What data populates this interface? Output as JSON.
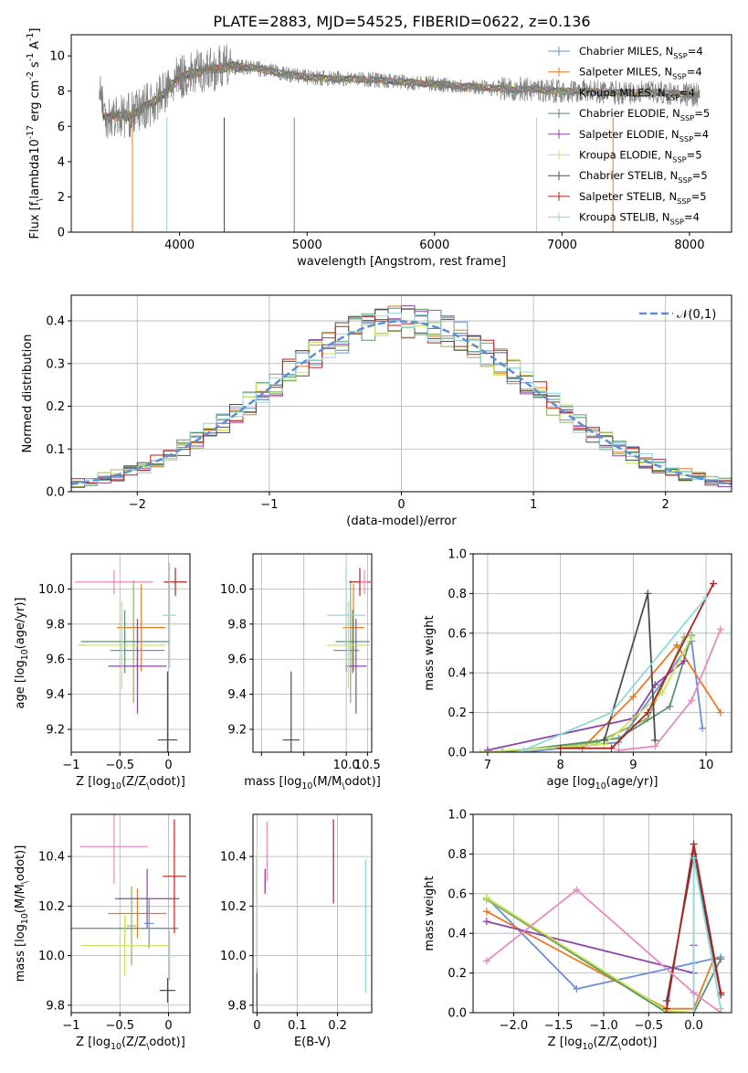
{
  "figure": {
    "title": "PLATE=2883, MJD=54525, FIBERID=0622, z=0.136"
  },
  "legend_spectrum": [
    "Chabrier MILES, N$_{SSP}$=4",
    "Salpeter MILES, N$_{SSP}$=4",
    "Kroupa MILES, N$_{SSP}$=4",
    "Chabrier ELODIE, N$_{SSP}$=5",
    "Salpeter ELODIE, N$_{SSP}$=4",
    "Kroupa ELODIE, N$_{SSP}$=5",
    "Chabrier STELIB, N$_{SSP}$=5",
    "Salpeter STELIB, N$_{SSP}$=5",
    "Kroupa STELIB, N$_{SSP}$=4"
  ],
  "colors": [
    "#6b8fd6",
    "#e87a27",
    "#8cb35a",
    "#5b8f70",
    "#8e44ad",
    "#c7e55a",
    "#4d4d4d",
    "#b22222",
    "#8dd8d8"
  ],
  "extra_color_pink": "#e88ac0",
  "chart_data": [
    {
      "id": "spectrum",
      "type": "line",
      "xlabel": "wavelength [Angstrom, rest frame]",
      "ylabel": "Flux [f$_\\lambda$10$^{-17}$ erg cm$^{-2}$ s$^{-1}$ A$^{-1}$]",
      "xlim": [
        3150,
        8330
      ],
      "ylim": [
        0,
        11.2
      ],
      "xticks": [
        4000,
        5000,
        6000,
        7000,
        8000
      ],
      "yticks": [
        0,
        2,
        4,
        6,
        8,
        10
      ],
      "grid": false,
      "legend_placement": "top-right",
      "data_continuum": {
        "x": [
          3400,
          3500,
          3600,
          3700,
          3800,
          3900,
          4000,
          4200,
          4400,
          4600,
          4800,
          5000,
          5200,
          5400,
          5600,
          5800,
          6000,
          6200,
          6400,
          6600,
          6800,
          7000,
          7200,
          7400,
          7600,
          7800,
          8000,
          8100
        ],
        "y": [
          6.6,
          6.6,
          6.6,
          7.0,
          7.4,
          8.0,
          8.8,
          9.2,
          9.4,
          9.3,
          9.0,
          8.8,
          8.7,
          8.7,
          8.6,
          8.5,
          8.4,
          8.3,
          8.2,
          8.1,
          8.1,
          8.0,
          8.0,
          7.9,
          7.9,
          7.9,
          7.8,
          7.8
        ]
      }
    },
    {
      "id": "residuals",
      "type": "histogram",
      "xlabel": "(data-model)/error",
      "ylabel": "Normed distribution",
      "xlim": [
        -2.5,
        2.5
      ],
      "ylim": [
        0,
        0.46
      ],
      "xticks": [
        -2,
        -1,
        0,
        1,
        2
      ],
      "xtick_labels": [
        "−2",
        "−1",
        "0",
        "1",
        "2"
      ],
      "yticks": [
        0.0,
        0.1,
        0.2,
        0.3,
        0.4
      ],
      "grid": true,
      "legend": [
        "$\\mathcal{N}(0,1)$"
      ],
      "legend_placement": "top-right",
      "bin_width": 0.1
    },
    {
      "id": "age-vs-Z",
      "type": "scatter",
      "xlabel": "Z [log$_{10}$(Z/Z$_\\odot$)]",
      "ylabel": "age  [log$_{10}$(age/yr)]",
      "xlim": [
        -1.0,
        0.22
      ],
      "ylim": [
        9.07,
        10.2
      ],
      "xticks": [
        -1.0,
        -0.5,
        0.0
      ],
      "yticks": [
        9.2,
        9.4,
        9.6,
        9.8,
        10.0
      ],
      "grid": true,
      "points": [
        {
          "x": -0.32,
          "y": 9.65,
          "xerr": 0.28,
          "yerr": 0.12
        },
        {
          "x": -0.28,
          "y": 9.78,
          "xerr": 0.25,
          "yerr": 0.25
        },
        {
          "x": -0.36,
          "y": 9.7,
          "xerr": 0.1,
          "yerr": 0.35
        },
        {
          "x": -0.45,
          "y": 9.7,
          "xerr": 0.45,
          "yerr": 0.18
        },
        {
          "x": -0.32,
          "y": 9.56,
          "xerr": 0.3,
          "yerr": 0.27
        },
        {
          "x": -0.48,
          "y": 9.68,
          "xerr": 0.45,
          "yerr": 0.25
        },
        {
          "x": -0.01,
          "y": 9.14,
          "xerr": 0.1,
          "yerr": 0.39
        },
        {
          "x": 0.07,
          "y": 10.04,
          "xerr": 0.12,
          "yerr": 0.08
        },
        {
          "x": 0.01,
          "y": 9.85,
          "xerr": 0.07,
          "yerr": 0.3
        },
        {
          "x": -0.56,
          "y": 10.04,
          "xerr": 0.4,
          "yerr": 0.07
        }
      ]
    },
    {
      "id": "age-vs-mass",
      "type": "scatter",
      "xlabel": "mass [log$_{10}$(M/M$_\\odot$)]",
      "xlim": [
        7.8,
        10.6
      ],
      "ylim": [
        9.07,
        10.2
      ],
      "xticks": [
        8.0,
        9.0,
        10.0,
        10.5
      ],
      "xtick_labels": [
        "",
        "",
        "10.0",
        "10.5"
      ],
      "yticks": [
        9.2,
        9.4,
        9.6,
        9.8,
        10.0
      ],
      "grid": true,
      "points": [
        {
          "x": 10.0,
          "y": 9.65,
          "xerr": 0.3,
          "yerr": 0.12
        },
        {
          "x": 10.17,
          "y": 9.78,
          "xerr": 0.25,
          "yerr": 0.25
        },
        {
          "x": 10.1,
          "y": 9.7,
          "xerr": 0.1,
          "yerr": 0.35
        },
        {
          "x": 10.15,
          "y": 9.7,
          "xerr": 0.4,
          "yerr": 0.18
        },
        {
          "x": 10.23,
          "y": 9.56,
          "xerr": 0.25,
          "yerr": 0.27
        },
        {
          "x": 10.05,
          "y": 9.68,
          "xerr": 0.5,
          "yerr": 0.25
        },
        {
          "x": 8.7,
          "y": 9.14,
          "xerr": 0.2,
          "yerr": 0.39
        },
        {
          "x": 10.32,
          "y": 10.04,
          "xerr": 0.25,
          "yerr": 0.08
        },
        {
          "x": 10.0,
          "y": 9.85,
          "xerr": 0.45,
          "yerr": 0.3
        },
        {
          "x": 10.43,
          "y": 10.04,
          "xerr": 0.1,
          "yerr": 0.07
        }
      ]
    },
    {
      "id": "massweight-vs-age",
      "type": "line",
      "xlabel": "age  [log$_{10}$(age/yr)]",
      "ylabel": "mass weight",
      "xlim": [
        6.8,
        10.35
      ],
      "ylim": [
        0.0,
        1.0
      ],
      "xticks": [
        7,
        8,
        9,
        10
      ],
      "yticks": [
        0.0,
        0.2,
        0.4,
        0.6,
        0.8,
        1.0
      ],
      "grid": true,
      "series": [
        {
          "x": [
            7.5,
            8.8,
            9.8,
            9.95
          ],
          "y": [
            0.0,
            0.05,
            0.56,
            0.12
          ]
        },
        {
          "x": [
            8.3,
            9.0,
            9.6,
            10.2
          ],
          "y": [
            0.02,
            0.28,
            0.54,
            0.2
          ]
        },
        {
          "x": [
            7.2,
            8.5,
            9.2,
            9.7
          ],
          "y": [
            0.0,
            0.05,
            0.17,
            0.58
          ]
        },
        {
          "x": [
            7.2,
            8.8,
            9.5,
            9.8
          ],
          "y": [
            0.0,
            0.07,
            0.23,
            0.59
          ]
        },
        {
          "x": [
            7.0,
            9.0,
            9.3,
            9.7
          ],
          "y": [
            0.01,
            0.17,
            0.34,
            0.46
          ]
        },
        {
          "x": [
            6.9,
            8.6,
            9.4,
            9.8
          ],
          "y": [
            0.0,
            0.04,
            0.3,
            0.58
          ]
        },
        {
          "x": [
            8.6,
            9.2,
            9.3
          ],
          "y": [
            0.06,
            0.8,
            0.06
          ]
        },
        {
          "x": [
            8.0,
            8.7,
            9.2,
            10.1
          ],
          "y": [
            0.02,
            0.02,
            0.2,
            0.85
          ]
        },
        {
          "x": [
            7.5,
            8.7,
            10.0
          ],
          "y": [
            0.01,
            0.2,
            0.78
          ]
        },
        {
          "x": [
            8.8,
            9.3,
            9.8,
            10.2
          ],
          "y": [
            0.01,
            0.03,
            0.26,
            0.62
          ]
        }
      ]
    },
    {
      "id": "mass-vs-Z",
      "type": "scatter",
      "xlabel": "Z [log$_{10}$(Z/Z$_\\odot$)]",
      "ylabel": "mass [log$_{10}$(M/M$_\\odot$)]",
      "xlim": [
        -1.0,
        0.22
      ],
      "ylim": [
        9.77,
        10.57
      ],
      "xticks": [
        -1.0,
        -0.5,
        0.0
      ],
      "yticks": [
        9.8,
        10.0,
        10.2,
        10.4
      ],
      "grid": true,
      "points": [
        {
          "x": -0.2,
          "y": 10.13,
          "xerr": 0.05,
          "yerr": 0.1
        },
        {
          "x": -0.32,
          "y": 10.17,
          "xerr": 0.3,
          "yerr": 0.1
        },
        {
          "x": -0.38,
          "y": 10.12,
          "xerr": 0.05,
          "yerr": 0.16
        },
        {
          "x": -0.45,
          "y": 10.11,
          "xerr": 0.55,
          "yerr": 0.05
        },
        {
          "x": -0.22,
          "y": 10.23,
          "xerr": 0.33,
          "yerr": 0.12
        },
        {
          "x": -0.45,
          "y": 10.04,
          "xerr": 0.45,
          "yerr": 0.12
        },
        {
          "x": -0.01,
          "y": 9.86,
          "xerr": 0.08,
          "yerr": 0.05
        },
        {
          "x": 0.06,
          "y": 10.32,
          "xerr": 0.12,
          "yerr": 0.23
        },
        {
          "x": 0.01,
          "y": 10.0,
          "xerr": 0.08,
          "yerr": 0.1
        },
        {
          "x": -0.56,
          "y": 10.44,
          "xerr": 0.35,
          "yerr": 0.15
        }
      ]
    },
    {
      "id": "mass-vs-EBV",
      "type": "scatter",
      "xlabel": "E(B-V)",
      "xlim": [
        -0.01,
        0.285
      ],
      "ylim": [
        9.77,
        10.57
      ],
      "xticks": [
        0.0,
        0.1,
        0.2
      ],
      "yticks": [
        9.8,
        10.0,
        10.2,
        10.4
      ],
      "grid": true,
      "points": [
        {
          "x": 0.0,
          "y": 10.1,
          "yerr": 0.3
        },
        {
          "x": 0.02,
          "y": 10.3,
          "yerr": 0.05
        },
        {
          "x": 0.0,
          "y": 9.9,
          "yerr": 0.1
        },
        {
          "x": 0.0,
          "y": 10.2,
          "yerr": 0.2
        },
        {
          "x": 0.02,
          "y": 10.3,
          "yerr": 0.05
        },
        {
          "x": 0.0,
          "y": 10.2,
          "yerr": 0.25
        },
        {
          "x": 0.0,
          "y": 9.85,
          "yerr": 0.08
        },
        {
          "x": 0.19,
          "y": 10.38,
          "yerr": 0.17
        },
        {
          "x": 0.27,
          "y": 10.12,
          "yerr": 0.27
        },
        {
          "x": 0.025,
          "y": 10.42,
          "yerr": 0.12
        }
      ]
    },
    {
      "id": "massweight-vs-Z",
      "type": "line",
      "xlabel": "Z [log$_{10}$(Z/Z$_\\odot$)]",
      "ylabel": "mass weight",
      "xlim": [
        -2.45,
        0.42
      ],
      "ylim": [
        0.0,
        1.0
      ],
      "xticks": [
        -2.0,
        -1.5,
        -1.0,
        -0.5,
        0.0
      ],
      "xtick_labels": [
        "−2.0",
        "−1.5",
        "−1.0",
        "−0.5",
        "0.0"
      ],
      "yticks": [
        0.0,
        0.2,
        0.4,
        0.6,
        0.8,
        1.0
      ],
      "grid": true,
      "series": [
        {
          "x": [
            -2.3,
            -1.3,
            0.0,
            0.3
          ],
          "y": [
            0.58,
            0.12,
            0.25,
            0.28
          ]
        },
        {
          "x": [
            -2.3,
            -0.3,
            0.0,
            0.22
          ],
          "y": [
            0.51,
            0.02,
            0.02,
            0.27
          ]
        },
        {
          "x": [
            -2.3,
            -0.3,
            0.0
          ],
          "y": [
            0.57,
            0.0,
            0.0
          ]
        },
        {
          "x": [
            -2.3,
            -0.3,
            0.0,
            0.3
          ],
          "y": [
            0.58,
            0.0,
            0.0,
            0.27
          ]
        },
        {
          "x": [
            -2.3,
            0.0,
            0.0
          ],
          "y": [
            0.46,
            0.2,
            0.34
          ]
        },
        {
          "x": [
            -2.3,
            -0.3,
            0.0
          ],
          "y": [
            0.58,
            0.01,
            0.0
          ]
        },
        {
          "x": [
            -0.3,
            0.0,
            0.3
          ],
          "y": [
            0.06,
            0.8,
            0.09
          ]
        },
        {
          "x": [
            -0.3,
            0.0,
            0.3
          ],
          "y": [
            0.02,
            0.85,
            0.1
          ]
        },
        {
          "x": [
            0.0,
            0.0,
            0.3
          ],
          "y": [
            0.0,
            0.78,
            0.02
          ]
        },
        {
          "x": [
            -2.3,
            -1.3,
            0.0,
            0.3
          ],
          "y": [
            0.26,
            0.62,
            0.1,
            0.0
          ]
        }
      ]
    }
  ]
}
